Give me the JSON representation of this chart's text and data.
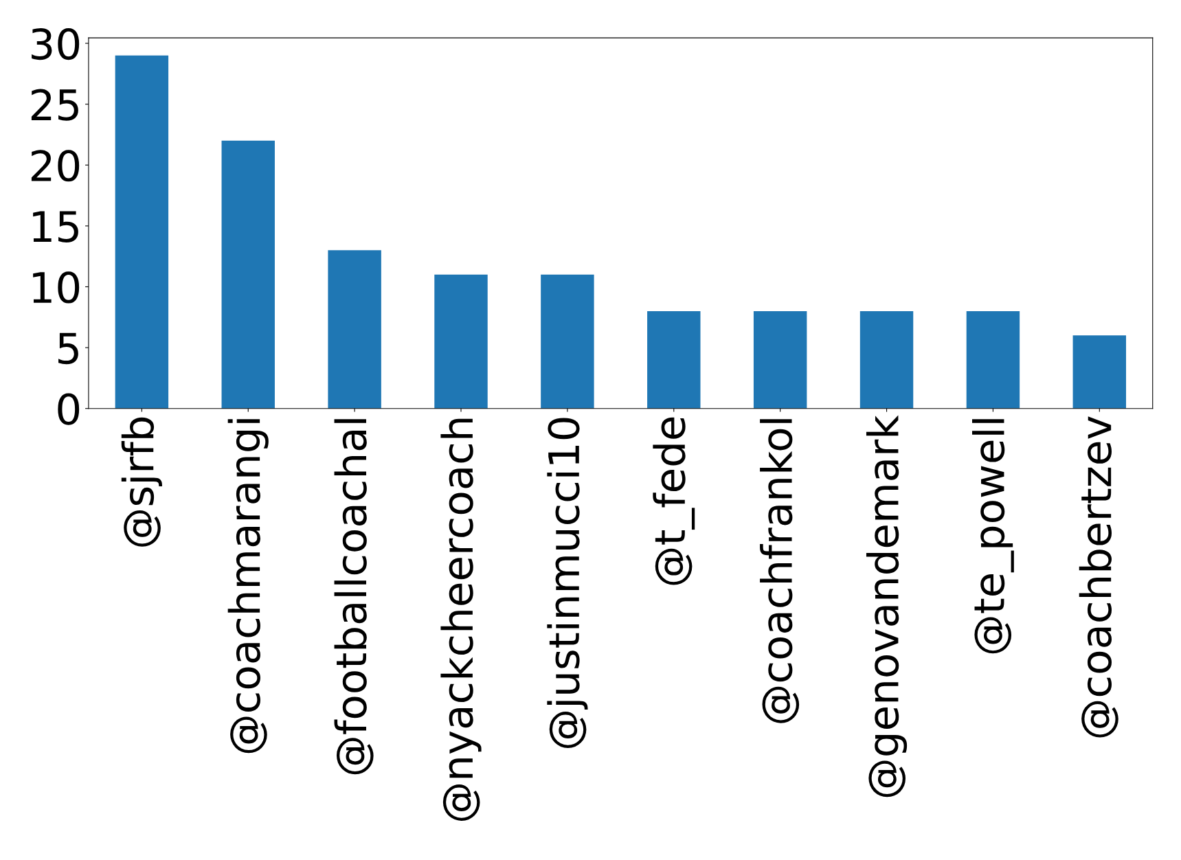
{
  "chart_data": {
    "type": "bar",
    "categories": [
      "@sjrfb",
      "@coachmarangi",
      "@footballcoachal",
      "@nyackcheercoach",
      "@justinmucci10",
      "@t_fede",
      "@coachfrankol",
      "@genovandemark",
      "@te_powell",
      "@coachbertzev"
    ],
    "values": [
      29,
      22,
      13,
      11,
      11,
      8,
      8,
      8,
      8,
      6
    ],
    "color": "#1f77b4",
    "ylim": [
      0,
      30.45
    ],
    "yticks": [
      0,
      5,
      10,
      15,
      20,
      25,
      30
    ],
    "grid": false,
    "legend": false
  }
}
